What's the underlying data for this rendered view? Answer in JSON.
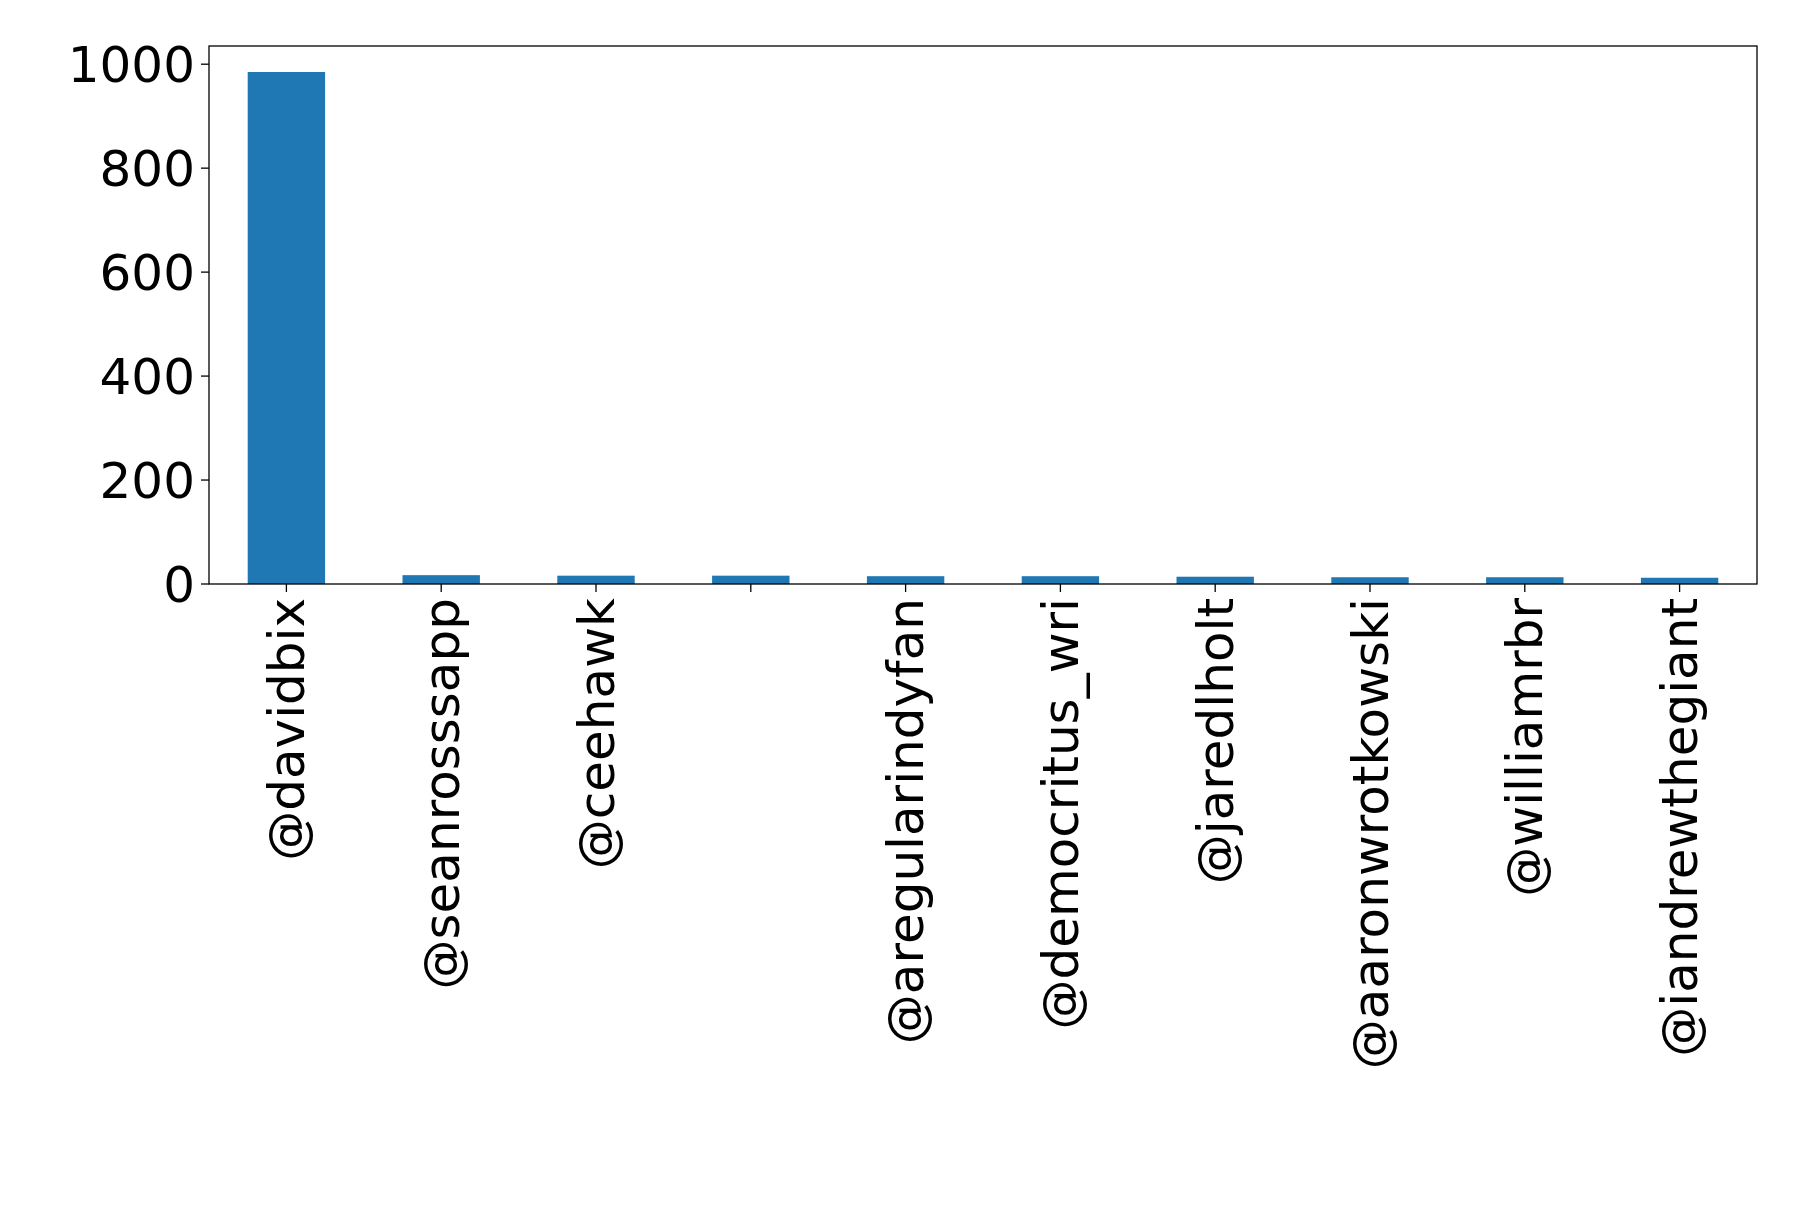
{
  "chart_data": {
    "type": "bar",
    "categories": [
      "@davidbix",
      "@seanrosssapp",
      "@ceehawk",
      null,
      "@aregularindyfan",
      "@democritus_wri",
      "@jaredlholt",
      "@aaronwrotkowski",
      "@williamrbr",
      "@iandrewthegiant"
    ],
    "values": [
      985,
      17,
      16,
      16,
      15,
      15,
      14,
      13,
      13,
      12
    ],
    "color": "#1f77b4",
    "ylim": [
      0,
      1035
    ],
    "yticks": [
      0,
      200,
      400,
      600,
      800,
      1000
    ]
  }
}
